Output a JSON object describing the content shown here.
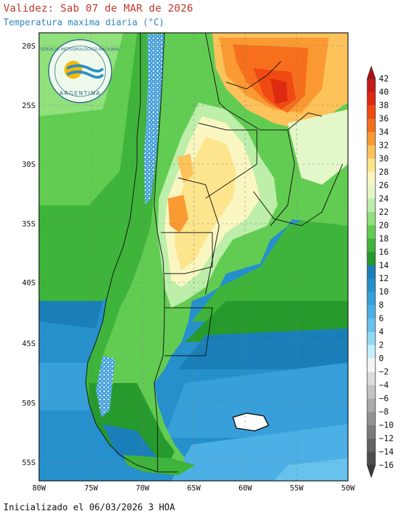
{
  "header": {
    "title": "Validez: Sab 07 de MAR de 2026",
    "subtitle": "Temperatura maxima diaria (°C)"
  },
  "footer": {
    "init_text": "Inicializado el 06/03/2026 3 HOA"
  },
  "map": {
    "lat_ticks": [
      "20S",
      "25S",
      "30S",
      "35S",
      "40S",
      "45S",
      "50S",
      "55S"
    ],
    "lon_ticks": [
      "80W",
      "75W",
      "70W",
      "65W",
      "60W",
      "55W",
      "50W"
    ],
    "lon_range": [
      -80,
      -50
    ],
    "lat_range": [
      -20,
      -56
    ]
  },
  "logo": {
    "arc_text": "SERVICIO METEOROLÓGICO NACIONAL",
    "country": "ARGENTINA"
  },
  "colorbar": {
    "labels": [
      "42",
      "40",
      "38",
      "36",
      "34",
      "32",
      "30",
      "28",
      "26",
      "24",
      "22",
      "20",
      "18",
      "16",
      "14",
      "12",
      "10",
      "8",
      "6",
      "4",
      "2",
      "0",
      "−2",
      "−4",
      "−6",
      "−8",
      "−10",
      "−12",
      "−14",
      "−16"
    ],
    "colors": [
      "#c41a1a",
      "#dd2a10",
      "#ef4a12",
      "#f76f1c",
      "#fb9a32",
      "#fdc25a",
      "#fde58d",
      "#f9f6c2",
      "#e4f7c8",
      "#bdeeaa",
      "#90e07c",
      "#62cc52",
      "#3fb43b",
      "#279a2d",
      "#1a7fb8",
      "#2590cc",
      "#379fd9",
      "#4cb0e6",
      "#68c2ee",
      "#93d8f5",
      "#c5efff",
      "#f5f5f5",
      "#dcdcdc",
      "#c4c4c4",
      "#ababab",
      "#939393",
      "#7b7b7b",
      "#646464",
      "#4e4e4e"
    ]
  }
}
